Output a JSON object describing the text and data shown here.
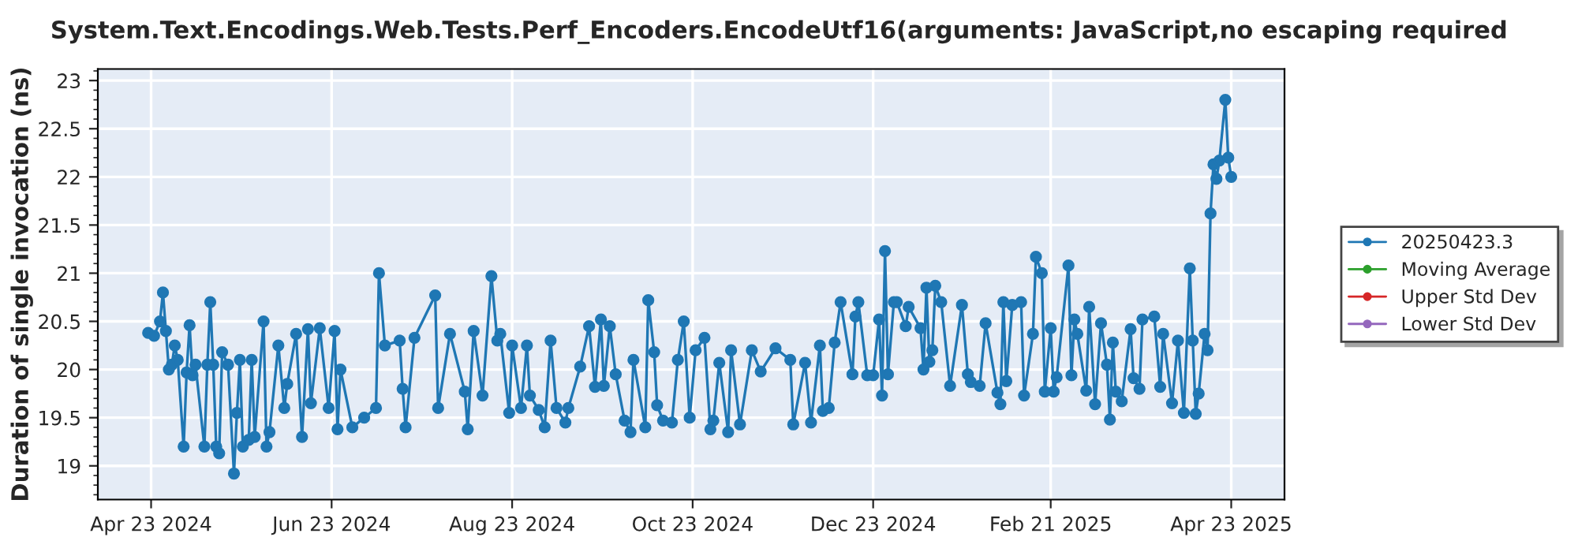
{
  "chart_data": {
    "type": "line",
    "title": "System.Text.Encodings.Web.Tests.Perf_Encoders.EncodeUtf16(arguments: JavaScript,no escaping required",
    "ylabel": "Duration of single invocation (ns)",
    "x": [
      "2024-04-22",
      "2024-04-24",
      "2024-04-26",
      "2024-04-27",
      "2024-04-28",
      "2024-04-29",
      "2024-04-30",
      "2024-05-01",
      "2024-05-02",
      "2024-05-04",
      "2024-05-05",
      "2024-05-06",
      "2024-05-07",
      "2024-05-08",
      "2024-05-11",
      "2024-05-12",
      "2024-05-13",
      "2024-05-14",
      "2024-05-15",
      "2024-05-16",
      "2024-05-17",
      "2024-05-19",
      "2024-05-21",
      "2024-05-22",
      "2024-05-23",
      "2024-05-24",
      "2024-05-26",
      "2024-05-27",
      "2024-05-28",
      "2024-05-31",
      "2024-06-01",
      "2024-06-02",
      "2024-06-05",
      "2024-06-07",
      "2024-06-08",
      "2024-06-11",
      "2024-06-13",
      "2024-06-15",
      "2024-06-16",
      "2024-06-19",
      "2024-06-22",
      "2024-06-24",
      "2024-06-25",
      "2024-06-26",
      "2024-06-30",
      "2024-07-04",
      "2024-07-08",
      "2024-07-09",
      "2024-07-11",
      "2024-07-16",
      "2024-07-17",
      "2024-07-18",
      "2024-07-21",
      "2024-07-28",
      "2024-07-29",
      "2024-08-02",
      "2024-08-07",
      "2024-08-08",
      "2024-08-10",
      "2024-08-13",
      "2024-08-16",
      "2024-08-18",
      "2024-08-19",
      "2024-08-22",
      "2024-08-23",
      "2024-08-26",
      "2024-08-28",
      "2024-08-29",
      "2024-09-01",
      "2024-09-03",
      "2024-09-05",
      "2024-09-07",
      "2024-09-10",
      "2024-09-11",
      "2024-09-15",
      "2024-09-18",
      "2024-09-20",
      "2024-09-22",
      "2024-09-23",
      "2024-09-25",
      "2024-09-27",
      "2024-09-30",
      "2024-10-02",
      "2024-10-03",
      "2024-10-07",
      "2024-10-08",
      "2024-10-10",
      "2024-10-11",
      "2024-10-13",
      "2024-10-16",
      "2024-10-18",
      "2024-10-20",
      "2024-10-22",
      "2024-10-24",
      "2024-10-27",
      "2024-10-29",
      "2024-10-30",
      "2024-11-01",
      "2024-11-04",
      "2024-11-05",
      "2024-11-08",
      "2024-11-12",
      "2024-11-15",
      "2024-11-20",
      "2024-11-25",
      "2024-11-26",
      "2024-11-30",
      "2024-12-02",
      "2024-12-05",
      "2024-12-06",
      "2024-12-08",
      "2024-12-10",
      "2024-12-12",
      "2024-12-16",
      "2024-12-17",
      "2024-12-18",
      "2024-12-21",
      "2024-12-23",
      "2024-12-25",
      "2024-12-26",
      "2024-12-27",
      "2024-12-28",
      "2024-12-30",
      "2024-12-31",
      "2025-01-03",
      "2025-01-04",
      "2025-01-08",
      "2025-01-09",
      "2025-01-10",
      "2025-01-11",
      "2025-01-12",
      "2025-01-13",
      "2025-01-15",
      "2025-01-18",
      "2025-01-22",
      "2025-01-24",
      "2025-01-25",
      "2025-01-28",
      "2025-01-30",
      "2025-02-03",
      "2025-02-04",
      "2025-02-05",
      "2025-02-06",
      "2025-02-08",
      "2025-02-11",
      "2025-02-12",
      "2025-02-15",
      "2025-02-16",
      "2025-02-18",
      "2025-02-19",
      "2025-02-21",
      "2025-02-22",
      "2025-02-23",
      "2025-02-27",
      "2025-02-28",
      "2025-03-01",
      "2025-03-02",
      "2025-03-05",
      "2025-03-06",
      "2025-03-08",
      "2025-03-10",
      "2025-03-12",
      "2025-03-13",
      "2025-03-14",
      "2025-03-15",
      "2025-03-17",
      "2025-03-20",
      "2025-03-21",
      "2025-03-23",
      "2025-03-24",
      "2025-03-28",
      "2025-03-30",
      "2025-03-31",
      "2025-04-03",
      "2025-04-05",
      "2025-04-07",
      "2025-04-09",
      "2025-04-10",
      "2025-04-11",
      "2025-04-12",
      "2025-04-14",
      "2025-04-15",
      "2025-04-16",
      "2025-04-17",
      "2025-04-18",
      "2025-04-19",
      "2025-04-21",
      "2025-04-22",
      "2025-04-23"
    ],
    "series": [
      {
        "name": "20250423.3",
        "color": "#1f77b4",
        "values": [
          20.38,
          20.35,
          20.5,
          20.8,
          20.4,
          20.0,
          20.05,
          20.25,
          20.1,
          19.2,
          19.97,
          20.46,
          19.94,
          20.05,
          19.2,
          20.05,
          20.7,
          20.05,
          19.2,
          19.13,
          20.18,
          20.05,
          18.92,
          19.55,
          20.1,
          19.2,
          19.27,
          20.1,
          19.3,
          20.5,
          19.2,
          19.35,
          20.25,
          19.6,
          19.85,
          20.37,
          19.3,
          20.42,
          19.65,
          20.43,
          19.6,
          20.4,
          19.38,
          20.0,
          19.4,
          19.5,
          19.6,
          21.0,
          20.25,
          20.3,
          19.8,
          19.4,
          20.33,
          20.77,
          19.6,
          20.37,
          19.77,
          19.38,
          20.4,
          19.73,
          20.97,
          20.3,
          20.37,
          19.55,
          20.25,
          19.6,
          20.25,
          19.73,
          19.58,
          19.4,
          20.3,
          19.6,
          19.45,
          19.6,
          20.03,
          20.45,
          19.82,
          20.52,
          19.83,
          20.45,
          19.95,
          19.47,
          19.35,
          20.1,
          19.4,
          20.72,
          20.18,
          19.63,
          19.47,
          19.45,
          20.1,
          20.5,
          19.5,
          20.2,
          20.33,
          19.38,
          19.47,
          20.07,
          19.35,
          20.2,
          19.43,
          20.2,
          19.98,
          20.22,
          20.1,
          19.43,
          20.07,
          19.45,
          20.25,
          19.57,
          19.6,
          20.28,
          20.7,
          19.95,
          20.55,
          20.7,
          19.94,
          19.94,
          20.52,
          19.73,
          21.23,
          19.95,
          20.7,
          20.7,
          20.45,
          20.65,
          20.43,
          20.0,
          20.85,
          20.08,
          20.2,
          20.87,
          20.7,
          19.83,
          20.67,
          19.95,
          19.87,
          19.83,
          20.48,
          19.76,
          19.64,
          20.7,
          19.88,
          20.67,
          20.7,
          19.73,
          20.37,
          21.17,
          21.0,
          19.77,
          20.43,
          19.77,
          19.92,
          21.08,
          19.94,
          20.52,
          20.37,
          19.78,
          20.65,
          19.64,
          20.48,
          20.05,
          19.48,
          20.28,
          19.77,
          19.67,
          20.42,
          19.91,
          19.8,
          20.52,
          20.55,
          19.82,
          20.37,
          19.65,
          20.3,
          19.55,
          21.05,
          20.3,
          19.54,
          19.75,
          20.37,
          20.2,
          21.62,
          22.13,
          21.98,
          22.17,
          22.8,
          22.2,
          22.0
        ]
      },
      {
        "name": "Moving Average",
        "color": "#2ca02c",
        "values": [
          null,
          null,
          null,
          null,
          null,
          null,
          null,
          null,
          null,
          null,
          null,
          null,
          null,
          null,
          null,
          null,
          null,
          null,
          null,
          null,
          null,
          null,
          null,
          null,
          null,
          null,
          null,
          null,
          null,
          null,
          null,
          null,
          null,
          null,
          null,
          null,
          null,
          null,
          null,
          null,
          null,
          null,
          null,
          null,
          null,
          null,
          null,
          null,
          null,
          null,
          null,
          null,
          null,
          null,
          null,
          null,
          null,
          null,
          null,
          null,
          null,
          null,
          null,
          null,
          null,
          null,
          null,
          null,
          null,
          null,
          null,
          null,
          null,
          null,
          null,
          null,
          null,
          null,
          null,
          null,
          null,
          null,
          null,
          null,
          null,
          null,
          null,
          null,
          null,
          null,
          null,
          null,
          null,
          null,
          null,
          null,
          null,
          null,
          null,
          null,
          null,
          null,
          null,
          null,
          null,
          null,
          null,
          null,
          null,
          null,
          null,
          null,
          null,
          null,
          null,
          null,
          null,
          null,
          null,
          null,
          null,
          null,
          null,
          null,
          null,
          null,
          null,
          null,
          null,
          null,
          null,
          null,
          null,
          null,
          null,
          null,
          null,
          null,
          null,
          null,
          null,
          null,
          null,
          null,
          null,
          null,
          null,
          null,
          null,
          null,
          null,
          null,
          null,
          null,
          null,
          null,
          null,
          null,
          null,
          null,
          null,
          null,
          null,
          null,
          null,
          null,
          null,
          null,
          null,
          null,
          null,
          null,
          null,
          null,
          null,
          null,
          null,
          null,
          null,
          null,
          null,
          null,
          null,
          null,
          null,
          null,
          null,
          null,
          null
        ]
      },
      {
        "name": "Upper Std Dev",
        "color": "#d62728",
        "values": [
          null,
          null,
          null,
          null,
          null,
          null,
          null,
          null,
          null,
          null,
          null,
          null,
          null,
          null,
          null,
          null,
          null,
          null,
          null,
          null,
          null,
          null,
          null,
          null,
          null,
          null,
          null,
          null,
          null,
          null,
          null,
          null,
          null,
          null,
          null,
          null,
          null,
          null,
          null,
          null,
          null,
          null,
          null,
          null,
          null,
          null,
          null,
          null,
          null,
          null,
          null,
          null,
          null,
          null,
          null,
          null,
          null,
          null,
          null,
          null,
          null,
          null,
          null,
          null,
          null,
          null,
          null,
          null,
          null,
          null,
          null,
          null,
          null,
          null,
          null,
          null,
          null,
          null,
          null,
          null,
          null,
          null,
          null,
          null,
          null,
          null,
          null,
          null,
          null,
          null,
          null,
          null,
          null,
          null,
          null,
          null,
          null,
          null,
          null,
          null,
          null,
          null,
          null,
          null,
          null,
          null,
          null,
          null,
          null,
          null,
          null,
          null,
          null,
          null,
          null,
          null,
          null,
          null,
          null,
          null,
          null,
          null,
          null,
          null,
          null,
          null,
          null,
          null,
          null,
          null,
          null,
          null,
          null,
          null,
          null,
          null,
          null,
          null,
          null,
          null,
          null,
          null,
          null,
          null,
          null,
          null,
          null,
          null,
          null,
          null,
          null,
          null,
          null,
          null,
          null,
          null,
          null,
          null,
          null,
          null,
          null,
          null,
          null,
          null,
          null,
          null,
          null,
          null,
          null,
          null,
          null,
          null,
          null,
          null,
          null,
          null,
          null,
          null,
          null,
          null,
          null,
          null,
          null,
          null,
          null,
          null,
          null,
          null,
          null
        ]
      },
      {
        "name": "Lower Std Dev",
        "color": "#9467bd",
        "values": [
          null,
          null,
          null,
          null,
          null,
          null,
          null,
          null,
          null,
          null,
          null,
          null,
          null,
          null,
          null,
          null,
          null,
          null,
          null,
          null,
          null,
          null,
          null,
          null,
          null,
          null,
          null,
          null,
          null,
          null,
          null,
          null,
          null,
          null,
          null,
          null,
          null,
          null,
          null,
          null,
          null,
          null,
          null,
          null,
          null,
          null,
          null,
          null,
          null,
          null,
          null,
          null,
          null,
          null,
          null,
          null,
          null,
          null,
          null,
          null,
          null,
          null,
          null,
          null,
          null,
          null,
          null,
          null,
          null,
          null,
          null,
          null,
          null,
          null,
          null,
          null,
          null,
          null,
          null,
          null,
          null,
          null,
          null,
          null,
          null,
          null,
          null,
          null,
          null,
          null,
          null,
          null,
          null,
          null,
          null,
          null,
          null,
          null,
          null,
          null,
          null,
          null,
          null,
          null,
          null,
          null,
          null,
          null,
          null,
          null,
          null,
          null,
          null,
          null,
          null,
          null,
          null,
          null,
          null,
          null,
          null,
          null,
          null,
          null,
          null,
          null,
          null,
          null,
          null,
          null,
          null,
          null,
          null,
          null,
          null,
          null,
          null,
          null,
          null,
          null,
          null,
          null,
          null,
          null,
          null,
          null,
          null,
          null,
          null,
          null,
          null,
          null,
          null,
          null,
          null,
          null,
          null,
          null,
          null,
          null,
          null,
          null,
          null,
          null,
          null,
          null,
          null,
          null,
          null,
          null,
          null,
          null,
          null,
          null,
          null,
          null,
          null,
          null,
          null,
          null,
          null,
          null,
          null,
          null,
          null,
          null,
          null,
          null,
          null
        ]
      }
    ],
    "xlim": [
      "2024-04-05",
      "2025-05-11"
    ],
    "xticks": [
      {
        "value": "2024-04-23",
        "label": "Apr 23 2024"
      },
      {
        "value": "2024-06-23",
        "label": "Jun 23 2024"
      },
      {
        "value": "2024-08-23",
        "label": "Aug 23 2024"
      },
      {
        "value": "2024-10-23",
        "label": "Oct 23 2024"
      },
      {
        "value": "2024-12-23",
        "label": "Dec 23 2024"
      },
      {
        "value": "2025-02-21",
        "label": "Feb 21 2025"
      },
      {
        "value": "2025-04-23",
        "label": "Apr 23 2025"
      }
    ],
    "ylim": [
      18.65,
      23.12
    ],
    "yticks": [
      19,
      19.5,
      20,
      20.5,
      21,
      21.5,
      22,
      22.5,
      23
    ],
    "grid": true,
    "legend": "right",
    "marker": "circle",
    "line_style": "solid"
  }
}
